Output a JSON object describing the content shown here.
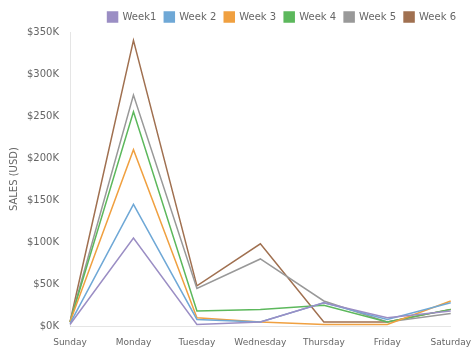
{
  "chart_data": {
    "type": "line",
    "categories": [
      "Sunday",
      "Monday",
      "Tuesday",
      "Wednesday",
      "Thursday",
      "Friday",
      "Saturday"
    ],
    "series": [
      {
        "name": "Week1",
        "color": "#9b8ec4",
        "values": [
          2000,
          105000,
          2000,
          5000,
          28000,
          10000,
          18000
        ]
      },
      {
        "name": "Week 2",
        "color": "#6fa8d6",
        "values": [
          3000,
          145000,
          8000,
          5000,
          28000,
          8000,
          28000
        ]
      },
      {
        "name": "Week 3",
        "color": "#f0a040",
        "values": [
          5000,
          210000,
          10000,
          5000,
          2000,
          2000,
          30000
        ]
      },
      {
        "name": "Week 4",
        "color": "#5cb85c",
        "values": [
          5000,
          255000,
          18000,
          20000,
          25000,
          5000,
          20000
        ]
      },
      {
        "name": "Week 5",
        "color": "#999999",
        "values": [
          5000,
          275000,
          45000,
          80000,
          30000,
          5000,
          15000
        ]
      },
      {
        "name": "Week 6",
        "color": "#a07050",
        "values": [
          5000,
          340000,
          48000,
          98000,
          5000,
          5000,
          20000
        ]
      }
    ],
    "ylabel": "SALES (USD)",
    "ylim": [
      0,
      350000
    ],
    "yticks": [
      {
        "value": 0,
        "label": "$0K"
      },
      {
        "value": 50000,
        "label": "$50K"
      },
      {
        "value": 100000,
        "label": "$100K"
      },
      {
        "value": 150000,
        "label": "$150K"
      },
      {
        "value": 200000,
        "label": "$200K"
      },
      {
        "value": 250000,
        "label": "$250K"
      },
      {
        "value": 300000,
        "label": "$300K"
      },
      {
        "value": 350000,
        "label": "$350K"
      }
    ],
    "grid": false,
    "legend": "upper right"
  }
}
